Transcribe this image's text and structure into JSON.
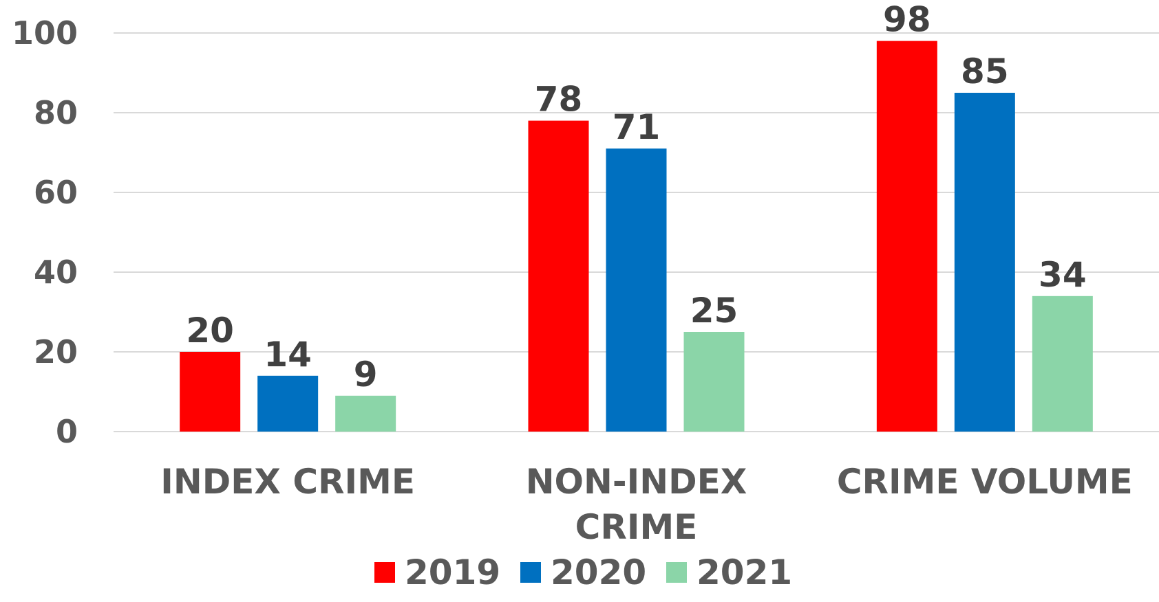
{
  "chart_data": {
    "type": "bar",
    "categories": [
      [
        "INDEX CRIME"
      ],
      [
        "NON-INDEX",
        "CRIME"
      ],
      [
        "CRIME VOLUME"
      ]
    ],
    "series": [
      {
        "name": "2019",
        "color": "#ff0000",
        "values": [
          20,
          78,
          98
        ]
      },
      {
        "name": "2020",
        "color": "#0070c0",
        "values": [
          14,
          71,
          85
        ]
      },
      {
        "name": "2021",
        "color": "#8bd5a8",
        "values": [
          9,
          25,
          34
        ]
      }
    ],
    "ylim": [
      0,
      100
    ],
    "yticks": [
      0,
      20,
      40,
      60,
      80,
      100
    ],
    "grid": true,
    "legend_position": "bottom",
    "data_labels": true
  }
}
